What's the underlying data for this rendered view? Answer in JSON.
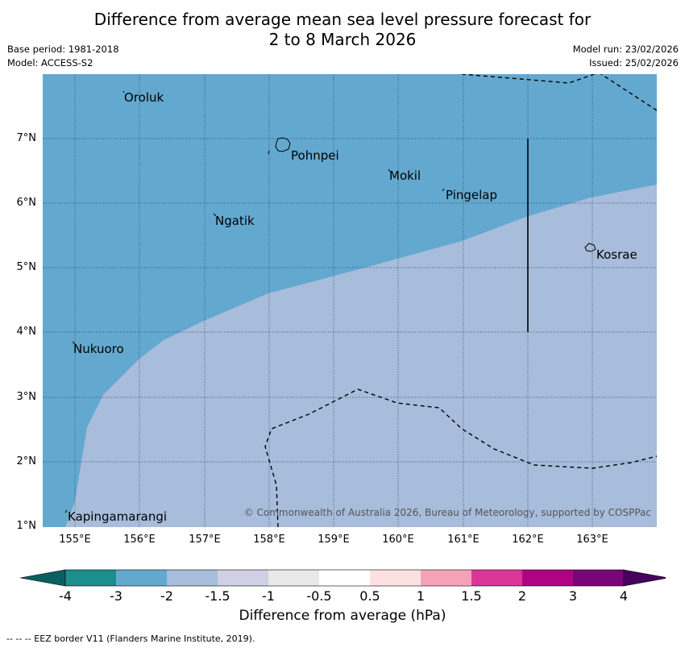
{
  "title": {
    "line1": "Difference from average mean sea level pressure forecast for",
    "line2": "2 to 8 March 2026"
  },
  "info": {
    "base_period": "Base period: 1981-2018",
    "model": "Model: ACCESS-S2",
    "model_run": "Model run: 23/02/2026",
    "issued": "Issued: 25/02/2026"
  },
  "axes": {
    "lat_labels": [
      "7°N",
      "6°N",
      "5°N",
      "4°N",
      "3°N",
      "2°N",
      "1°N"
    ],
    "lon_labels": [
      "155°E",
      "156°E",
      "157°E",
      "158°E",
      "159°E",
      "160°E",
      "161°E",
      "162°E",
      "163°E"
    ]
  },
  "places": {
    "oroluk": "Oroluk",
    "pohnpei": "Pohnpei",
    "mokil": "Mokil",
    "pingelap": "Pingelap",
    "ngatik": "Ngatik",
    "kosrae": "Kosrae",
    "nukuoro": "Nukuoro",
    "kapingamarangi": "Kapingamarangi"
  },
  "credit": "© Commonwealth of Australia 2026, Bureau of Meteorology, supported by COSPPac",
  "colorbar": {
    "title": "Difference from average (hPa)",
    "ticks": [
      "-4",
      "-3",
      "-2",
      "-1.5",
      "-1",
      "-0.5",
      "0.5",
      "1",
      "1.5",
      "2",
      "3",
      "4"
    ],
    "colors": [
      "#1b8e8e",
      "#63a8cf",
      "#a8bcdb",
      "#cfd0e6",
      "#e9e9e9",
      "#ffffff",
      "#fde0e1",
      "#f5a2b8",
      "#db3597",
      "#b00382",
      "#7a0579"
    ],
    "under_color": "#0a6060",
    "over_color": "#48005e"
  },
  "map_fill": {
    "north_region": "#63a8cf",
    "south_region": "#a8bcdb"
  },
  "footer": "--  --  -- EEZ border V11 (Flanders Marine Institute, 2019)."
}
